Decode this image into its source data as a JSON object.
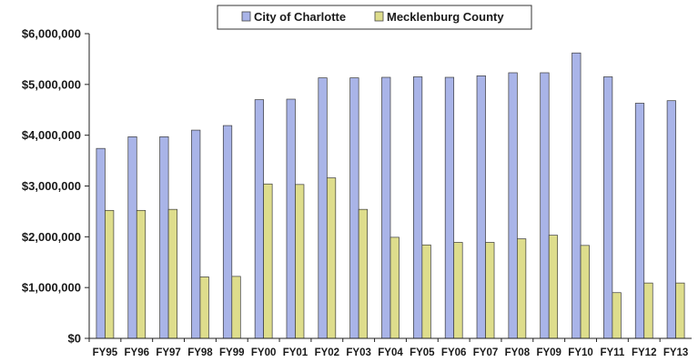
{
  "chart_data": {
    "type": "bar",
    "title": "",
    "xlabel": "",
    "ylabel": "",
    "categories": [
      "FY95",
      "FY96",
      "FY97",
      "FY98",
      "FY99",
      "FY00",
      "FY01",
      "FY02",
      "FY03",
      "FY04",
      "FY05",
      "FY06",
      "FY07",
      "FY08",
      "FY09",
      "FY10",
      "FY11",
      "FY12",
      "FY13"
    ],
    "series": [
      {
        "name": "City of Charlotte",
        "color": "#a9b4e8",
        "values": [
          3740000,
          3970000,
          3970000,
          4100000,
          4190000,
          4700000,
          4710000,
          5130000,
          5130000,
          5140000,
          5150000,
          5140000,
          5170000,
          5230000,
          5230000,
          5620000,
          5150000,
          4630000,
          4680000
        ]
      },
      {
        "name": "Mecklenburg County",
        "color": "#dedd8c",
        "values": [
          2520000,
          2520000,
          2540000,
          1210000,
          1220000,
          3040000,
          3030000,
          3160000,
          2540000,
          1990000,
          1840000,
          1890000,
          1890000,
          1960000,
          2030000,
          1830000,
          900000,
          1090000,
          1090000
        ]
      }
    ],
    "ylim": [
      0,
      6000000
    ],
    "yticks": [
      0,
      1000000,
      2000000,
      3000000,
      4000000,
      5000000,
      6000000
    ],
    "ytick_labels": [
      "$0",
      "$1,000,000",
      "$2,000,000",
      "$3,000,000",
      "$4,000,000",
      "$5,000,000",
      "$6,000,000"
    ],
    "grid": false,
    "legend_position": "top"
  }
}
